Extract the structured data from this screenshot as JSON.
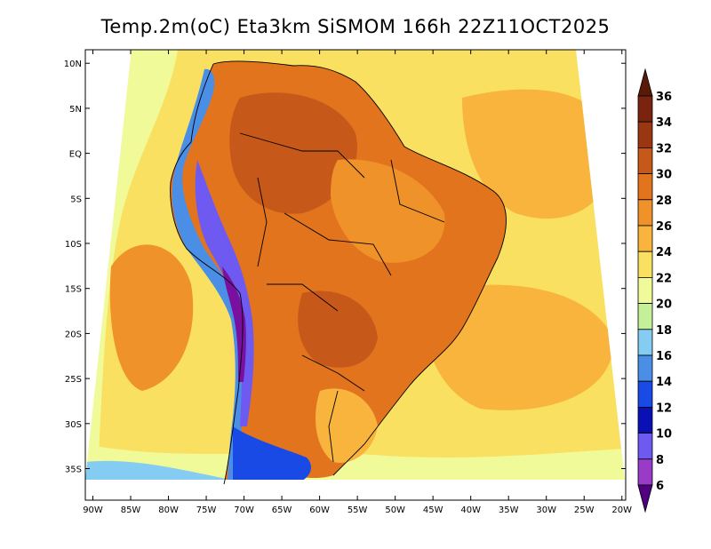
{
  "title": "Temp.2m(oC) Eta3km SiSMOM 166h 22Z11OCT2025",
  "map": {
    "lon_range": [
      -91,
      -19.5
    ],
    "lat_range": [
      -38.5,
      11.5
    ],
    "lon_ticks": [
      {
        "value": -90,
        "label": "90W"
      },
      {
        "value": -85,
        "label": "85W"
      },
      {
        "value": -80,
        "label": "80W"
      },
      {
        "value": -75,
        "label": "75W"
      },
      {
        "value": -70,
        "label": "70W"
      },
      {
        "value": -65,
        "label": "65W"
      },
      {
        "value": -60,
        "label": "60W"
      },
      {
        "value": -55,
        "label": "55W"
      },
      {
        "value": -50,
        "label": "50W"
      },
      {
        "value": -45,
        "label": "45W"
      },
      {
        "value": -40,
        "label": "40W"
      },
      {
        "value": -35,
        "label": "35W"
      },
      {
        "value": -30,
        "label": "30W"
      },
      {
        "value": -25,
        "label": "25W"
      },
      {
        "value": -20,
        "label": "20W"
      }
    ],
    "lat_ticks": [
      {
        "value": 10,
        "label": "10N"
      },
      {
        "value": 5,
        "label": "5N"
      },
      {
        "value": 0,
        "label": "EQ"
      },
      {
        "value": -5,
        "label": "5S"
      },
      {
        "value": -10,
        "label": "10S"
      },
      {
        "value": -15,
        "label": "15S"
      },
      {
        "value": -20,
        "label": "20S"
      },
      {
        "value": -25,
        "label": "25S"
      },
      {
        "value": -30,
        "label": "30S"
      },
      {
        "value": -35,
        "label": "35S"
      }
    ]
  },
  "colorbar": {
    "levels": [
      {
        "label": "6",
        "color": "#7a10a0"
      },
      {
        "label": "8",
        "color": "#9a3ac8"
      },
      {
        "label": "10",
        "color": "#6e5af0"
      },
      {
        "label": "12",
        "color": "#0a10b4"
      },
      {
        "label": "14",
        "color": "#1a4ae6"
      },
      {
        "label": "16",
        "color": "#4a8ee6"
      },
      {
        "label": "18",
        "color": "#84ccf2"
      },
      {
        "label": "20",
        "color": "#c4f09a"
      },
      {
        "label": "22",
        "color": "#f0fa98"
      },
      {
        "label": "24",
        "color": "#fae060"
      },
      {
        "label": "26",
        "color": "#f8b43c"
      },
      {
        "label": "28",
        "color": "#f0922a"
      },
      {
        "label": "30",
        "color": "#e2741e"
      },
      {
        "label": "32",
        "color": "#c6581a"
      },
      {
        "label": "34",
        "color": "#9a3612"
      },
      {
        "label": "36",
        "color": "#7a2410"
      }
    ],
    "under_color": "#500080",
    "over_color": "#5a1a08"
  },
  "colors": {
    "ocean_warm": "#fae060",
    "ocean_cool": "#f0fa98",
    "ocean_mild": "#f8b43c",
    "land_hot": "#e2741e",
    "land_very_hot": "#c6581a",
    "andes_cold": "#6e5af0",
    "andes_colder": "#1a4ae6",
    "coastline": "#000000"
  }
}
